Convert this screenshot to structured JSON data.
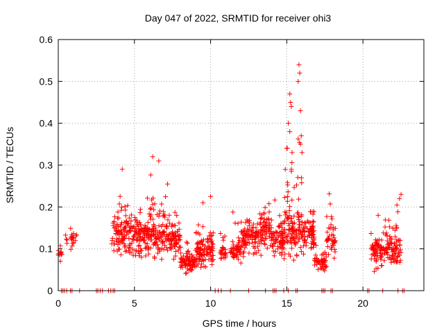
{
  "chart_data": {
    "type": "scatter",
    "title": "Day 047 of 2022, SRMTID for receiver ohi3",
    "xlabel": "GPS time / hours",
    "ylabel": "SRMTID / TECUs",
    "xlim": [
      0,
      24
    ],
    "ylim": [
      0,
      0.6
    ],
    "xticks": [
      0,
      5,
      10,
      15,
      20
    ],
    "yticks": [
      0,
      0.1,
      0.2,
      0.3,
      0.4,
      0.5,
      0.6
    ],
    "marker": "plus",
    "series_color": "#ff0000",
    "grid": true,
    "clusters": [
      {
        "x0": 0.0,
        "x1": 0.25,
        "ymin": 0.06,
        "ymax": 0.12,
        "center": 0.09,
        "n": 12
      },
      {
        "x0": 0.45,
        "x1": 0.6,
        "ymin": 0.1,
        "ymax": 0.14,
        "center": 0.12,
        "n": 4
      },
      {
        "x0": 0.8,
        "x1": 1.2,
        "ymin": 0.09,
        "ymax": 0.16,
        "center": 0.125,
        "n": 18
      },
      {
        "x0": 3.5,
        "x1": 4.8,
        "ymin": 0.05,
        "ymax": 0.29,
        "center": 0.14,
        "n": 110
      },
      {
        "x0": 4.8,
        "x1": 6.0,
        "ymin": 0.05,
        "ymax": 0.24,
        "center": 0.14,
        "n": 110
      },
      {
        "x0": 6.0,
        "x1": 7.2,
        "ymin": 0.05,
        "ymax": 0.32,
        "center": 0.14,
        "n": 110
      },
      {
        "x0": 7.2,
        "x1": 8.0,
        "ymin": 0.07,
        "ymax": 0.21,
        "center": 0.13,
        "n": 70
      },
      {
        "x0": 8.0,
        "x1": 9.0,
        "ymin": 0.03,
        "ymax": 0.14,
        "center": 0.07,
        "n": 90
      },
      {
        "x0": 9.0,
        "x1": 10.2,
        "ymin": 0.04,
        "ymax": 0.23,
        "center": 0.1,
        "n": 110
      },
      {
        "x0": 10.6,
        "x1": 11.0,
        "ymin": 0.06,
        "ymax": 0.18,
        "center": 0.1,
        "n": 25
      },
      {
        "x0": 11.3,
        "x1": 12.0,
        "ymin": 0.06,
        "ymax": 0.22,
        "center": 0.1,
        "n": 50
      },
      {
        "x0": 12.0,
        "x1": 13.2,
        "ymin": 0.06,
        "ymax": 0.22,
        "center": 0.13,
        "n": 100
      },
      {
        "x0": 13.2,
        "x1": 14.0,
        "ymin": 0.08,
        "ymax": 0.24,
        "center": 0.15,
        "n": 70
      },
      {
        "x0": 14.0,
        "x1": 14.8,
        "ymin": 0.07,
        "ymax": 0.26,
        "center": 0.13,
        "n": 70
      },
      {
        "x0": 14.8,
        "x1": 15.3,
        "ymin": 0.04,
        "ymax": 0.47,
        "center": 0.16,
        "n": 50
      },
      {
        "x0": 15.3,
        "x1": 16.0,
        "ymin": 0.06,
        "ymax": 0.54,
        "center": 0.15,
        "n": 70
      },
      {
        "x0": 16.0,
        "x1": 16.8,
        "ymin": 0.07,
        "ymax": 0.26,
        "center": 0.14,
        "n": 70
      },
      {
        "x0": 16.8,
        "x1": 17.6,
        "ymin": 0.04,
        "ymax": 0.12,
        "center": 0.07,
        "n": 50
      },
      {
        "x0": 17.6,
        "x1": 18.2,
        "ymin": 0.07,
        "ymax": 0.26,
        "center": 0.12,
        "n": 40
      },
      {
        "x0": 20.5,
        "x1": 21.4,
        "ymin": 0.04,
        "ymax": 0.18,
        "center": 0.1,
        "n": 70
      },
      {
        "x0": 21.4,
        "x1": 22.5,
        "ymin": 0.05,
        "ymax": 0.23,
        "center": 0.1,
        "n": 90
      }
    ],
    "spikes": [
      {
        "x": 15.8,
        "y": 0.54
      },
      {
        "x": 15.85,
        "y": 0.52
      },
      {
        "x": 15.75,
        "y": 0.5
      },
      {
        "x": 15.2,
        "y": 0.47
      },
      {
        "x": 15.25,
        "y": 0.45
      },
      {
        "x": 15.3,
        "y": 0.44
      },
      {
        "x": 15.9,
        "y": 0.43
      },
      {
        "x": 15.1,
        "y": 0.4
      },
      {
        "x": 15.2,
        "y": 0.38
      },
      {
        "x": 15.95,
        "y": 0.37
      },
      {
        "x": 15.9,
        "y": 0.35
      },
      {
        "x": 15.0,
        "y": 0.34
      },
      {
        "x": 15.35,
        "y": 0.33
      },
      {
        "x": 16.0,
        "y": 0.33
      },
      {
        "x": 6.2,
        "y": 0.32
      },
      {
        "x": 6.6,
        "y": 0.31
      },
      {
        "x": 4.2,
        "y": 0.29
      },
      {
        "x": 15.3,
        "y": 0.29
      },
      {
        "x": 9.5,
        "y": 0.21
      },
      {
        "x": 10.0,
        "y": 0.225
      },
      {
        "x": 22.5,
        "y": 0.23
      },
      {
        "x": 22.4,
        "y": 0.22
      },
      {
        "x": 21.0,
        "y": 0.18
      }
    ],
    "zero_markers_x": [
      0.2,
      0.3,
      0.4,
      0.55,
      0.8,
      0.9,
      1.4,
      2.5,
      2.6,
      2.75,
      2.9,
      3.3,
      3.45,
      3.6,
      3.7,
      10.3,
      10.5,
      10.7,
      11.3,
      12.5,
      13.6,
      14.1,
      14.2,
      14.3,
      14.8,
      15.1,
      15.6,
      15.7,
      17.3,
      17.4,
      17.5,
      17.9,
      18.0,
      20.3,
      20.4,
      21.3,
      22.3,
      22.6,
      22.7
    ]
  }
}
